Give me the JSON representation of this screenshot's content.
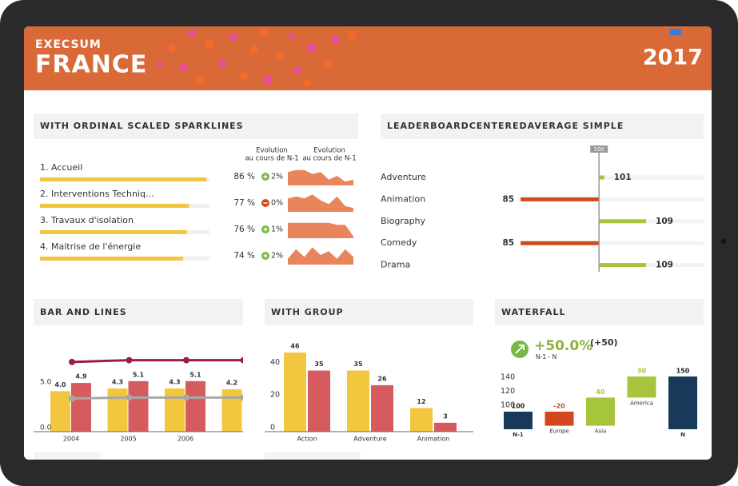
{
  "header": {
    "brand": "EXECSUM",
    "title": "FRANCE",
    "year": "2017"
  },
  "sparklines": {
    "title": "WITH ORDINAL SCALED SPARKLINES",
    "column_headers": [
      [
        "Evolution",
        "au cours de N-1"
      ],
      [
        "Evolution",
        "au cours de N-1"
      ]
    ],
    "bar_color": "#f3c63f",
    "area_color": "#e8855b",
    "sparkline_ylim": [
      0,
      10
    ],
    "rows": [
      {
        "label": "1. Accueil",
        "value": 86,
        "value_label": "86 %",
        "change": 2,
        "change_label": "2%",
        "trend": "up",
        "sparkline": [
          7,
          8,
          8,
          6,
          7,
          3,
          5,
          2,
          3
        ]
      },
      {
        "label": "2. Interventions Techniq…",
        "value": 77,
        "value_label": "77 %",
        "change": 0,
        "change_label": "0%",
        "trend": "down",
        "sparkline": [
          7,
          8,
          7,
          9,
          6,
          4,
          8,
          3,
          2
        ]
      },
      {
        "label": "3. Travaux d'isolation",
        "value": 76,
        "value_label": "76 %",
        "change": 1,
        "change_label": "1%",
        "trend": "up",
        "sparkline": [
          8,
          8,
          8,
          8,
          8,
          8,
          7,
          7,
          1
        ]
      },
      {
        "label": "4. Maitrise de l'énergie",
        "value": 74,
        "value_label": "74 %",
        "change": 2,
        "change_label": "2%",
        "trend": "up",
        "sparkline": [
          3,
          8,
          4,
          9,
          5,
          7,
          3,
          8,
          4
        ]
      }
    ]
  },
  "chart_data": [
    {
      "type": "diverging-bar",
      "title": "LEADERBOARDCENTEREDAVERAGE SIMPLE",
      "categories": [
        "Adventure",
        "Animation",
        "Biography",
        "Comedy",
        "Drama"
      ],
      "values": [
        101,
        85,
        109,
        85,
        109
      ],
      "reference": 100,
      "xlim": [
        83,
        120
      ],
      "colors": {
        "above": "#a6c43c",
        "below": "#cf4a1c"
      }
    },
    {
      "type": "bar-line",
      "title": "BAR AND LINES",
      "categories": [
        "2004",
        "2005",
        "2006",
        null
      ],
      "series": [
        {
          "type": "bar",
          "color": "#f3c63f",
          "values": [
            4.0,
            4.3,
            4.3,
            4.2
          ],
          "value_labels": [
            "4.0",
            "4.3",
            "4.3",
            "4.2"
          ]
        },
        {
          "type": "bar",
          "color": "#d65b5f",
          "values": [
            4.9,
            5.1,
            5.1,
            null
          ],
          "value_labels": [
            "4.9",
            "5.1",
            "5.1",
            null
          ]
        },
        {
          "type": "line",
          "color": "#9c1d4a",
          "values": [
            7.2,
            7.4,
            7.4,
            7.4
          ]
        },
        {
          "type": "line",
          "color": "#a8a8a8",
          "values": [
            3.2,
            3.3,
            3.3,
            3.3
          ]
        }
      ],
      "ylim": [
        0,
        7.8
      ],
      "yticks": [
        {
          "value": 0,
          "label": "0.0"
        },
        {
          "value": 5,
          "label": "5.0"
        }
      ]
    },
    {
      "type": "bar",
      "title": "WITH GROUP",
      "categories": [
        "Action",
        "Adventure",
        "Animation"
      ],
      "series": [
        {
          "color": "#f3c63f",
          "values": [
            46,
            35,
            12
          ]
        },
        {
          "color": "#d65b5f",
          "values": [
            35,
            26,
            3
          ]
        }
      ],
      "ylim": [
        0,
        48
      ],
      "yticks": [
        0,
        20,
        40
      ]
    },
    {
      "type": "waterfall",
      "title": "WATERFALL",
      "kpi": {
        "value": 50,
        "label": "+50.0%"
      },
      "kpi_delta": {
        "value": 50,
        "label": "(+50)"
      },
      "kpi_caption": "N-1 - N",
      "categories": [
        "N-1",
        "Europe",
        "Asia",
        "America",
        "N"
      ],
      "values": [
        100,
        -20,
        40,
        30,
        150
      ],
      "kinds": [
        "total",
        "delta",
        "delta",
        "delta",
        "total"
      ],
      "colors": {
        "total": "#173a5a",
        "negative": "#d4471e",
        "positive": "#a6c43c"
      },
      "ylim": [
        75,
        175
      ],
      "yticks": [
        100,
        120,
        140
      ]
    }
  ]
}
